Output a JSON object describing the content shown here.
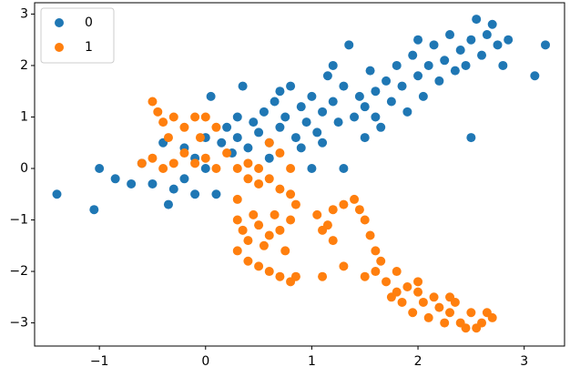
{
  "chart_data": {
    "type": "scatter",
    "xlim": [
      -1.61,
      3.38
    ],
    "ylim": [
      -3.45,
      3.22
    ],
    "xticks": [
      {
        "value": -1,
        "label": "−1"
      },
      0,
      1,
      2,
      3
    ],
    "yticks": [
      {
        "value": -3,
        "label": "−3"
      },
      {
        "value": -2,
        "label": "−2"
      },
      {
        "value": -1,
        "label": "−1"
      },
      0,
      1,
      2,
      3
    ],
    "grid": false,
    "legend": "upper-left",
    "series": [
      {
        "name": "0",
        "color": "#1f77b4",
        "x": [
          -1.4,
          -1.05,
          -1.0,
          -0.85,
          -0.7,
          -0.6,
          -0.5,
          -0.4,
          -0.35,
          -0.3,
          -0.2,
          -0.1,
          -0.1,
          0.0,
          0.05,
          0.1,
          0.15,
          0.2,
          0.25,
          0.3,
          0.35,
          0.4,
          0.45,
          0.5,
          0.55,
          0.6,
          0.65,
          0.7,
          0.75,
          0.8,
          0.85,
          0.9,
          0.95,
          1.0,
          1.0,
          1.05,
          1.1,
          1.15,
          1.2,
          1.25,
          1.3,
          1.3,
          1.35,
          1.4,
          1.45,
          1.5,
          1.55,
          1.6,
          1.65,
          1.7,
          1.75,
          1.8,
          1.85,
          1.9,
          1.95,
          2.0,
          2.05,
          2.1,
          2.15,
          2.2,
          2.25,
          2.3,
          2.35,
          2.4,
          2.45,
          2.5,
          2.5,
          2.55,
          2.6,
          2.65,
          2.7,
          2.75,
          2.8,
          2.85,
          3.1,
          3.2,
          0.6,
          0.9,
          1.1,
          1.6,
          0.3,
          -0.2,
          0.0,
          2.0,
          1.2,
          0.7,
          1.5
        ],
        "values": [
          -0.5,
          -0.8,
          0.0,
          -0.2,
          -0.3,
          0.1,
          -0.3,
          0.5,
          -0.7,
          -0.4,
          -0.2,
          0.2,
          -0.5,
          0.0,
          1.4,
          -0.5,
          0.5,
          0.8,
          0.3,
          0.6,
          1.6,
          0.4,
          0.9,
          0.7,
          1.1,
          0.5,
          1.3,
          0.8,
          1.0,
          1.6,
          0.6,
          1.2,
          0.9,
          1.4,
          0.0,
          0.7,
          1.1,
          1.8,
          1.3,
          0.9,
          0.0,
          1.6,
          2.4,
          1.0,
          1.4,
          1.2,
          1.9,
          1.5,
          0.8,
          1.7,
          1.3,
          2.0,
          1.6,
          1.1,
          2.2,
          1.8,
          1.4,
          2.0,
          2.4,
          1.7,
          2.1,
          2.6,
          1.9,
          2.3,
          2.0,
          0.6,
          2.5,
          2.9,
          2.2,
          2.6,
          2.8,
          2.4,
          2.0,
          2.5,
          1.8,
          2.4,
          0.2,
          0.4,
          0.5,
          1.0,
          1.0,
          0.4,
          0.6,
          2.5,
          2.0,
          1.5,
          0.6
        ]
      },
      {
        "name": "1",
        "color": "#ff7f0e",
        "x": [
          -0.5,
          -0.45,
          -0.4,
          -0.35,
          -0.3,
          -0.2,
          -0.1,
          -0.05,
          0.0,
          0.1,
          -0.6,
          -0.5,
          -0.4,
          -0.3,
          -0.2,
          -0.1,
          0.0,
          0.1,
          0.2,
          0.3,
          0.4,
          0.5,
          0.6,
          0.7,
          0.8,
          0.4,
          0.5,
          0.6,
          0.7,
          0.8,
          0.85,
          0.3,
          0.3,
          0.35,
          0.4,
          0.45,
          0.5,
          0.55,
          0.6,
          0.65,
          0.7,
          0.75,
          0.8,
          0.4,
          0.5,
          0.6,
          0.7,
          0.8,
          0.85,
          0.3,
          1.05,
          1.1,
          1.15,
          1.2,
          1.3,
          1.4,
          1.45,
          1.5,
          1.55,
          1.6,
          1.6,
          1.65,
          1.5,
          1.2,
          1.1,
          1.3,
          1.7,
          1.75,
          1.8,
          1.85,
          1.9,
          1.95,
          2.0,
          2.05,
          2.1,
          2.15,
          2.2,
          2.25,
          2.3,
          2.35,
          2.4,
          2.45,
          2.5,
          2.55,
          2.6,
          2.65,
          2.7,
          2.0,
          1.8,
          2.3
        ],
        "values": [
          1.3,
          1.1,
          0.9,
          0.6,
          1.0,
          0.8,
          1.0,
          0.6,
          1.0,
          0.8,
          0.1,
          0.2,
          0.0,
          0.1,
          0.3,
          0.1,
          0.2,
          0.0,
          0.3,
          0.0,
          0.1,
          0.0,
          0.5,
          0.3,
          0.0,
          -0.2,
          -0.3,
          -0.2,
          -0.4,
          -0.5,
          -0.7,
          -0.6,
          -1.0,
          -1.2,
          -1.4,
          -0.9,
          -1.1,
          -1.5,
          -1.3,
          -0.9,
          -1.2,
          -1.6,
          -1.0,
          -1.8,
          -1.9,
          -2.0,
          -2.1,
          -2.2,
          -2.1,
          -1.6,
          -0.9,
          -1.2,
          -1.1,
          -0.8,
          -0.7,
          -0.6,
          -0.8,
          -1.0,
          -1.3,
          -1.6,
          -2.0,
          -1.8,
          -2.1,
          -1.4,
          -2.1,
          -1.9,
          -2.2,
          -2.5,
          -2.0,
          -2.6,
          -2.3,
          -2.8,
          -2.4,
          -2.6,
          -2.9,
          -2.5,
          -2.7,
          -3.0,
          -2.8,
          -2.6,
          -3.0,
          -3.1,
          -2.8,
          -3.1,
          -3.0,
          -2.8,
          -2.9,
          -2.2,
          -2.4,
          -2.5
        ]
      }
    ]
  }
}
